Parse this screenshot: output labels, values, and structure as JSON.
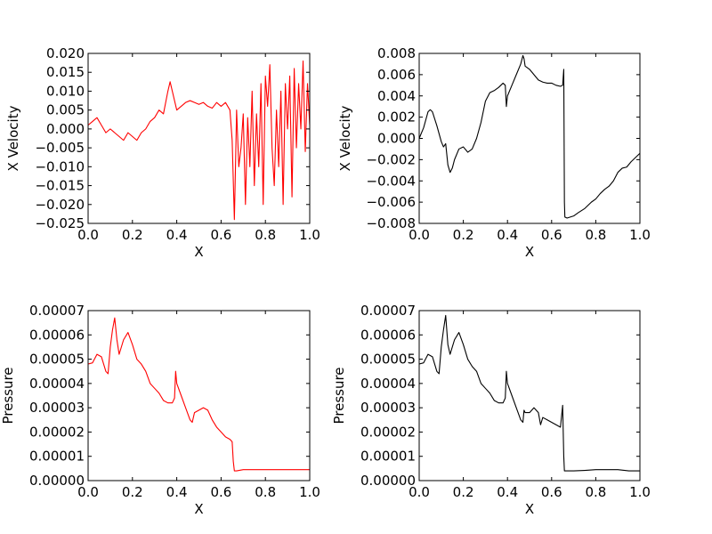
{
  "chart_data": [
    {
      "type": "line",
      "xlabel": "X",
      "ylabel": "X Velocity",
      "xlim": [
        0.0,
        1.0
      ],
      "ylim": [
        -0.025,
        0.02
      ],
      "xticks": [
        "0.0",
        "0.2",
        "0.4",
        "0.6",
        "0.8",
        "1.0"
      ],
      "yticks": [
        "0.020",
        "0.015",
        "0.010",
        "0.005",
        "0.000",
        "−0.005",
        "−0.010",
        "−0.015",
        "−0.020",
        "−0.025"
      ],
      "ytick_values": [
        0.02,
        0.015,
        0.01,
        0.005,
        0.0,
        -0.005,
        -0.01,
        -0.015,
        -0.02,
        -0.025
      ],
      "grid": false,
      "color": "#ff0000",
      "series": [
        {
          "x": [
            0.0,
            0.02,
            0.04,
            0.06,
            0.08,
            0.1,
            0.12,
            0.14,
            0.16,
            0.18,
            0.2,
            0.22,
            0.24,
            0.26,
            0.28,
            0.3,
            0.32,
            0.34,
            0.36,
            0.37,
            0.38,
            0.4,
            0.42,
            0.44,
            0.46,
            0.48,
            0.5,
            0.52,
            0.54,
            0.56,
            0.58,
            0.6,
            0.62,
            0.64,
            0.65,
            0.66,
            0.665,
            0.67,
            0.68,
            0.69,
            0.7,
            0.71,
            0.72,
            0.73,
            0.74,
            0.75,
            0.76,
            0.77,
            0.78,
            0.79,
            0.8,
            0.81,
            0.82,
            0.83,
            0.84,
            0.85,
            0.86,
            0.87,
            0.88,
            0.89,
            0.9,
            0.91,
            0.92,
            0.93,
            0.94,
            0.95,
            0.96,
            0.97,
            0.98,
            0.99,
            1.0
          ],
          "y": [
            0.001,
            0.002,
            0.003,
            0.001,
            -0.001,
            0.0,
            -0.001,
            -0.002,
            -0.003,
            -0.001,
            -0.002,
            -0.003,
            -0.001,
            0.0,
            0.002,
            0.003,
            0.005,
            0.004,
            0.01,
            0.0125,
            0.01,
            0.005,
            0.006,
            0.007,
            0.0075,
            0.007,
            0.0065,
            0.007,
            0.006,
            0.0055,
            0.007,
            0.006,
            0.007,
            0.005,
            -0.003,
            -0.024,
            -0.01,
            0.005,
            -0.01,
            -0.005,
            0.004,
            -0.02,
            0.003,
            -0.01,
            0.01,
            -0.015,
            0.004,
            -0.01,
            0.012,
            -0.02,
            0.014,
            0.006,
            0.017,
            -0.005,
            -0.015,
            0.005,
            -0.01,
            0.01,
            -0.02,
            0.012,
            0.0,
            0.014,
            -0.018,
            0.016,
            -0.005,
            0.012,
            0.0,
            0.018,
            -0.006,
            0.012,
            0.001
          ]
        }
      ]
    },
    {
      "type": "line",
      "xlabel": "X",
      "ylabel": "X Velocity",
      "xlim": [
        0.0,
        1.0
      ],
      "ylim": [
        -0.008,
        0.008
      ],
      "xticks": [
        "0.0",
        "0.2",
        "0.4",
        "0.6",
        "0.8",
        "1.0"
      ],
      "yticks": [
        "0.008",
        "0.006",
        "0.004",
        "0.002",
        "0.000",
        "−0.002",
        "−0.004",
        "−0.006",
        "−0.008"
      ],
      "ytick_values": [
        0.008,
        0.006,
        0.004,
        0.002,
        0.0,
        -0.002,
        -0.004,
        -0.006,
        -0.008
      ],
      "grid": false,
      "color": "#000000",
      "series": [
        {
          "x": [
            0.0,
            0.02,
            0.04,
            0.05,
            0.06,
            0.08,
            0.1,
            0.11,
            0.12,
            0.13,
            0.14,
            0.15,
            0.16,
            0.18,
            0.2,
            0.22,
            0.24,
            0.26,
            0.28,
            0.3,
            0.32,
            0.34,
            0.36,
            0.38,
            0.39,
            0.395,
            0.4,
            0.42,
            0.44,
            0.46,
            0.47,
            0.475,
            0.48,
            0.5,
            0.52,
            0.54,
            0.56,
            0.58,
            0.6,
            0.62,
            0.64,
            0.65,
            0.655,
            0.658,
            0.66,
            0.67,
            0.7,
            0.72,
            0.75,
            0.78,
            0.8,
            0.82,
            0.84,
            0.86,
            0.88,
            0.9,
            0.92,
            0.94,
            0.96,
            0.98,
            1.0
          ],
          "y": [
            0.0,
            0.001,
            0.0025,
            0.0027,
            0.0025,
            0.0012,
            -0.0003,
            -0.0008,
            -0.0005,
            -0.0025,
            -0.0032,
            -0.0028,
            -0.002,
            -0.001,
            -0.0008,
            -0.0013,
            -0.001,
            0.0,
            0.0015,
            0.0035,
            0.0043,
            0.0045,
            0.0048,
            0.0052,
            0.005,
            0.003,
            0.004,
            0.005,
            0.006,
            0.007,
            0.0078,
            0.0075,
            0.0068,
            0.0065,
            0.006,
            0.0055,
            0.0053,
            0.0052,
            0.0052,
            0.005,
            0.0049,
            0.005,
            0.0065,
            -0.006,
            -0.0074,
            -0.0075,
            -0.0073,
            -0.007,
            -0.0066,
            -0.006,
            -0.0057,
            -0.0052,
            -0.0048,
            -0.0045,
            -0.004,
            -0.0032,
            -0.0028,
            -0.0027,
            -0.0022,
            -0.0018,
            -0.0014
          ]
        }
      ]
    },
    {
      "type": "line",
      "xlabel": "X",
      "ylabel": "Pressure",
      "xlim": [
        0.0,
        1.0
      ],
      "ylim": [
        0.0,
        7e-05
      ],
      "xticks": [
        "0.0",
        "0.2",
        "0.4",
        "0.6",
        "0.8",
        "1.0"
      ],
      "yticks": [
        "0.00007",
        "0.00006",
        "0.00005",
        "0.00004",
        "0.00003",
        "0.00002",
        "0.00001",
        "0.00000"
      ],
      "ytick_values": [
        7e-05,
        6e-05,
        5e-05,
        4e-05,
        3e-05,
        2e-05,
        1e-05,
        0.0
      ],
      "grid": false,
      "color": "#ff0000",
      "series": [
        {
          "x": [
            0.0,
            0.02,
            0.04,
            0.06,
            0.08,
            0.09,
            0.1,
            0.11,
            0.12,
            0.13,
            0.14,
            0.16,
            0.18,
            0.2,
            0.22,
            0.24,
            0.26,
            0.28,
            0.3,
            0.32,
            0.34,
            0.36,
            0.38,
            0.39,
            0.395,
            0.4,
            0.42,
            0.44,
            0.46,
            0.47,
            0.48,
            0.5,
            0.52,
            0.54,
            0.56,
            0.58,
            0.6,
            0.62,
            0.64,
            0.65,
            0.655,
            0.66,
            0.67,
            0.7,
            0.75,
            0.8,
            0.85,
            0.9,
            0.95,
            1.0
          ],
          "y": [
            4.8e-05,
            4.85e-05,
            5.2e-05,
            5.1e-05,
            4.5e-05,
            4.4e-05,
            5.5e-05,
            6.2e-05,
            6.7e-05,
            5.8e-05,
            5.2e-05,
            5.8e-05,
            6.1e-05,
            5.6e-05,
            5e-05,
            4.8e-05,
            4.5e-05,
            4e-05,
            3.8e-05,
            3.6e-05,
            3.3e-05,
            3.2e-05,
            3.2e-05,
            3.4e-05,
            4.5e-05,
            4e-05,
            3.5e-05,
            3e-05,
            2.5e-05,
            2.4e-05,
            2.8e-05,
            2.9e-05,
            3e-05,
            2.9e-05,
            2.5e-05,
            2.2e-05,
            2e-05,
            1.8e-05,
            1.7e-05,
            1.6e-05,
            8e-06,
            4e-06,
            4e-06,
            4.5e-06,
            4.5e-06,
            4.5e-06,
            4.5e-06,
            4.5e-06,
            4.5e-06,
            4.5e-06
          ]
        }
      ]
    },
    {
      "type": "line",
      "xlabel": "X",
      "ylabel": "Pressure",
      "xlim": [
        0.0,
        1.0
      ],
      "ylim": [
        0.0,
        7e-05
      ],
      "xticks": [
        "0.0",
        "0.2",
        "0.4",
        "0.6",
        "0.8",
        "1.0"
      ],
      "yticks": [
        "0.00007",
        "0.00006",
        "0.00005",
        "0.00004",
        "0.00003",
        "0.00002",
        "0.00001",
        "0.00000"
      ],
      "ytick_values": [
        7e-05,
        6e-05,
        5e-05,
        4e-05,
        3e-05,
        2e-05,
        1e-05,
        0.0
      ],
      "grid": false,
      "color": "#000000",
      "series": [
        {
          "x": [
            0.0,
            0.02,
            0.04,
            0.06,
            0.08,
            0.09,
            0.1,
            0.11,
            0.12,
            0.13,
            0.14,
            0.16,
            0.18,
            0.2,
            0.22,
            0.24,
            0.26,
            0.28,
            0.3,
            0.32,
            0.34,
            0.36,
            0.38,
            0.39,
            0.395,
            0.4,
            0.42,
            0.44,
            0.46,
            0.47,
            0.475,
            0.48,
            0.5,
            0.52,
            0.54,
            0.55,
            0.56,
            0.58,
            0.6,
            0.62,
            0.64,
            0.65,
            0.655,
            0.658,
            0.66,
            0.7,
            0.75,
            0.8,
            0.85,
            0.9,
            0.95,
            1.0
          ],
          "y": [
            4.8e-05,
            4.85e-05,
            5.2e-05,
            5.1e-05,
            4.5e-05,
            4.4e-05,
            5.5e-05,
            6.2e-05,
            6.8e-05,
            5.6e-05,
            5.2e-05,
            5.8e-05,
            6.1e-05,
            5.6e-05,
            5e-05,
            4.7e-05,
            4.5e-05,
            4e-05,
            3.8e-05,
            3.6e-05,
            3.3e-05,
            3.2e-05,
            3.2e-05,
            3.4e-05,
            4.5e-05,
            4e-05,
            3.5e-05,
            3e-05,
            2.5e-05,
            2.4e-05,
            2.9e-05,
            2.8e-05,
            2.8e-05,
            3e-05,
            2.8e-05,
            2.3e-05,
            2.6e-05,
            2.5e-05,
            2.4e-05,
            2.3e-05,
            2.2e-05,
            3.1e-05,
            1e-05,
            4e-06,
            4e-06,
            4e-06,
            4.2e-06,
            4.5e-06,
            4.5e-06,
            4.5e-06,
            4e-06,
            4e-06
          ]
        }
      ]
    }
  ]
}
